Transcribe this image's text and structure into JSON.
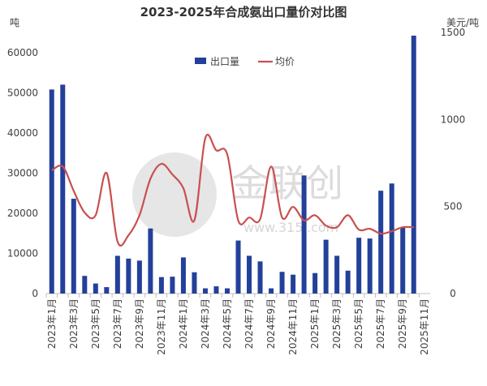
{
  "chart_data": {
    "type": "bar_line",
    "title": "2023-2025年合成氨出口量价对比图",
    "y_label": "吨",
    "y2_label": "美元/吨",
    "watermark": "金联创",
    "watermark_url": "www.315i.com",
    "categories": [
      "2023年1月",
      null,
      "2023年3月",
      null,
      "2023年5月",
      null,
      "2023年7月",
      null,
      "2023年9月",
      null,
      "2023年11月",
      null,
      "2024年1月",
      null,
      "2024年3月",
      null,
      "2024年5月",
      null,
      "2024年7月",
      null,
      "2024年9月",
      null,
      "2024年11月",
      null,
      "2025年1月",
      null,
      "2025年3月",
      null,
      "2025年5月",
      null,
      "2025年7月",
      null,
      "2025年9月",
      null,
      "2025年11月"
    ],
    "series": [
      {
        "name": "出口量",
        "type": "bar",
        "color": "#23409a",
        "values": [
          50800,
          52000,
          23600,
          4400,
          2500,
          1600,
          9400,
          8700,
          8200,
          16200,
          4100,
          4200,
          9000,
          5300,
          1300,
          1800,
          1300,
          13200,
          9400,
          8000,
          1300,
          5400,
          4700,
          29400,
          5100,
          13400,
          9400,
          5700,
          13900,
          13700,
          25600,
          27400,
          16500,
          64200,
          null
        ]
      },
      {
        "name": "均价",
        "type": "line",
        "axis": "y2",
        "color": "#c8504f",
        "values": [
          707,
          730,
          590,
          465,
          450,
          693,
          298,
          335,
          450,
          660,
          745,
          684,
          605,
          420,
          893,
          823,
          800,
          420,
          437,
          428,
          730,
          437,
          498,
          420,
          450,
          390,
          381,
          450,
          367,
          372,
          344,
          358,
          381,
          381,
          null
        ]
      }
    ],
    "ylim": [
      0,
      65000
    ],
    "yticks": [
      0,
      10000,
      20000,
      30000,
      40000,
      50000,
      60000
    ],
    "y2lim": [
      0,
      1500
    ],
    "y2ticks": [
      0,
      500,
      1000,
      1500
    ],
    "grid": false
  }
}
